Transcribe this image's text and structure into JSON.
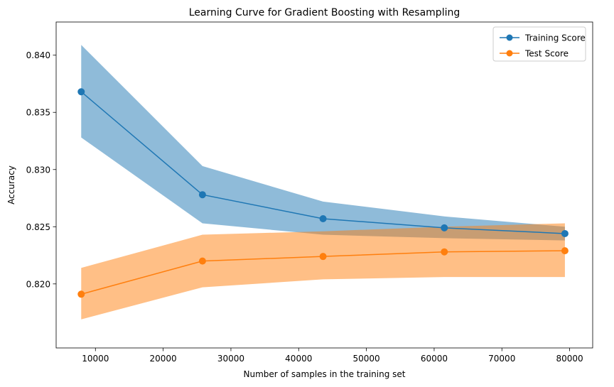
{
  "chart_data": {
    "type": "line",
    "title": "Learning Curve for Gradient Boosting with Resampling",
    "xlabel": "Number of samples in the training set",
    "ylabel": "Accuracy",
    "xlim": [
      4200,
      83400
    ],
    "ylim": [
      0.8144,
      0.8429
    ],
    "x_ticks": [
      10000,
      20000,
      30000,
      40000,
      50000,
      60000,
      70000,
      80000
    ],
    "x_tick_labels": [
      "10000",
      "20000",
      "30000",
      "40000",
      "50000",
      "60000",
      "70000",
      "80000"
    ],
    "y_ticks": [
      0.82,
      0.825,
      0.83,
      0.835,
      0.84
    ],
    "y_tick_labels": [
      "0.820",
      "0.825",
      "0.830",
      "0.835",
      "0.840"
    ],
    "grid": false,
    "legend_position": "top-right",
    "x": [
      7900,
      25800,
      43600,
      61500,
      79300
    ],
    "series": [
      {
        "name": "Training Score",
        "color": "#1f77b4",
        "marker": "circle",
        "values": [
          0.8368,
          0.8278,
          0.8257,
          0.8249,
          0.8244
        ],
        "band_upper": [
          0.8409,
          0.8303,
          0.8272,
          0.8259,
          0.825
        ],
        "band_lower": [
          0.8328,
          0.8253,
          0.8243,
          0.824,
          0.8238
        ]
      },
      {
        "name": "Test Score",
        "color": "#ff7f0e",
        "marker": "circle",
        "values": [
          0.8191,
          0.822,
          0.8224,
          0.8228,
          0.8229
        ],
        "band_upper": [
          0.8214,
          0.8243,
          0.8246,
          0.825,
          0.8253
        ],
        "band_lower": [
          0.8169,
          0.8197,
          0.8204,
          0.8206,
          0.8206
        ]
      }
    ]
  }
}
